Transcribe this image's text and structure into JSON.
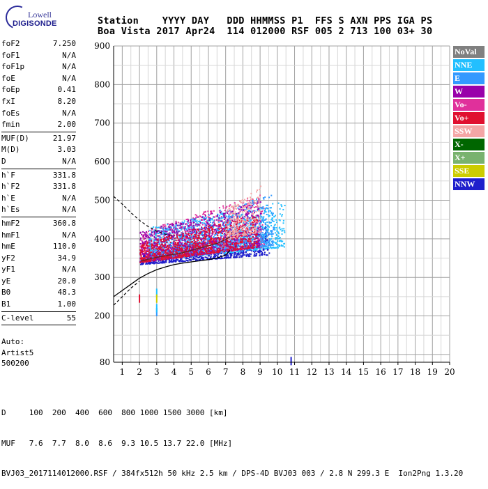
{
  "logo": {
    "line1": "Lowell",
    "line2": "DIGISONDE"
  },
  "header": {
    "line1": "Station    YYYY DAY   DDD HHMMSS P1  FFS S AXN PPS IGA PS",
    "line2": "Boa Vista 2017 Apr24  114 012000 RSF 005 2 713 100 03+ 30"
  },
  "params": [
    {
      "k": "foF2",
      "v": "7.250"
    },
    {
      "k": "foF1",
      "v": "N/A"
    },
    {
      "k": "foF1p",
      "v": "N/A"
    },
    {
      "k": "foE",
      "v": "N/A"
    },
    {
      "k": "foEp",
      "v": "0.41"
    },
    {
      "k": "fxI",
      "v": "8.20"
    },
    {
      "k": "foEs",
      "v": "N/A"
    },
    {
      "k": "fmin",
      "v": "2.00",
      "sep": true
    },
    {
      "k": "MUF(D)",
      "v": "21.97"
    },
    {
      "k": "M(D)",
      "v": "3.03"
    },
    {
      "k": "D",
      "v": "N/A",
      "sep": true
    },
    {
      "k": "h`F",
      "v": "331.8"
    },
    {
      "k": "h`F2",
      "v": "331.8"
    },
    {
      "k": "h`E",
      "v": "N/A"
    },
    {
      "k": "h`Es",
      "v": "N/A",
      "sep": true
    },
    {
      "k": "hmF2",
      "v": "360.8"
    },
    {
      "k": "hmF1",
      "v": "N/A"
    },
    {
      "k": "hmE",
      "v": "110.0"
    },
    {
      "k": "yF2",
      "v": "34.9"
    },
    {
      "k": "yF1",
      "v": "N/A"
    },
    {
      "k": "yE",
      "v": "20.0"
    },
    {
      "k": "B0",
      "v": "48.3"
    },
    {
      "k": "B1",
      "v": "1.00",
      "sep": true
    },
    {
      "k": "C-level",
      "v": "55",
      "sep": true
    }
  ],
  "autoscaling": [
    "Auto:",
    "Artist5",
    "500200"
  ],
  "bottom": {
    "line1": "D     100  200  400  600  800 1000 1500 3000 [km]",
    "line2": "MUF   7.6  7.7  8.0  8.6  9.3 10.5 13.7 22.0 [MHz]",
    "line3": "BVJ03_2017114012000.RSF / 384fx512h 50 kHz 2.5 km / DPS-4D BVJ03 003 / 2.8 N 299.3 E  Ion2Png 1.3.20"
  },
  "legend": [
    {
      "label": "NoVal",
      "color": "#808080"
    },
    {
      "label": "NNE",
      "color": "#22bfff"
    },
    {
      "label": "E",
      "color": "#3399ff"
    },
    {
      "label": "W",
      "color": "#9900aa"
    },
    {
      "label": "Vo-",
      "color": "#e0309b"
    },
    {
      "label": "Vo+",
      "color": "#e01030"
    },
    {
      "label": "SSW",
      "color": "#f4a6a6"
    },
    {
      "label": "X-",
      "color": "#006600"
    },
    {
      "label": "X+",
      "color": "#79b26e"
    },
    {
      "label": "SSE",
      "color": "#cccc00"
    },
    {
      "label": "NNW",
      "color": "#1f1fcc"
    }
  ],
  "chart_data": {
    "type": "scatter",
    "title": "",
    "xlabel": "",
    "ylabel": "",
    "xlim": [
      0.5,
      20
    ],
    "ylim": [
      80,
      900
    ],
    "xticks": [
      1,
      2,
      3,
      4,
      5,
      6,
      7,
      8,
      9,
      10,
      11,
      12,
      13,
      14,
      15,
      16,
      17,
      18,
      19,
      20
    ],
    "yticks": [
      200,
      300,
      400,
      500,
      600,
      700,
      800,
      900
    ],
    "ytick_labels": [
      "200",
      "300",
      "400",
      "500",
      "600",
      "700",
      "800",
      "900"
    ],
    "ymin_label": "80",
    "grid": true,
    "true_height_profile": [
      {
        "x": 0.5,
        "y": 250
      },
      {
        "x": 1.0,
        "y": 266
      },
      {
        "x": 1.5,
        "y": 282
      },
      {
        "x": 2.0,
        "y": 298
      },
      {
        "x": 2.5,
        "y": 310
      },
      {
        "x": 3.0,
        "y": 320
      },
      {
        "x": 3.5,
        "y": 327
      },
      {
        "x": 4.0,
        "y": 333
      },
      {
        "x": 4.5,
        "y": 337
      },
      {
        "x": 5.0,
        "y": 340
      },
      {
        "x": 5.5,
        "y": 343
      },
      {
        "x": 6.0,
        "y": 346
      },
      {
        "x": 6.5,
        "y": 350
      },
      {
        "x": 7.0,
        "y": 358
      },
      {
        "x": 7.25,
        "y": 370
      }
    ],
    "virtual_trace": [
      {
        "x": 2.1,
        "y": 342
      },
      {
        "x": 2.6,
        "y": 348
      },
      {
        "x": 3.0,
        "y": 352
      },
      {
        "x": 3.5,
        "y": 356
      },
      {
        "x": 4.0,
        "y": 360
      },
      {
        "x": 4.5,
        "y": 364
      },
      {
        "x": 5.0,
        "y": 370
      },
      {
        "x": 5.5,
        "y": 376
      },
      {
        "x": 6.0,
        "y": 382
      },
      {
        "x": 6.5,
        "y": 388
      },
      {
        "x": 7.0,
        "y": 398
      },
      {
        "x": 7.25,
        "y": 405
      }
    ],
    "upper_profile_dashed": [
      {
        "x": 0.5,
        "y": 510
      },
      {
        "x": 1.0,
        "y": 490
      },
      {
        "x": 1.5,
        "y": 468
      },
      {
        "x": 2.0,
        "y": 448
      },
      {
        "x": 2.5,
        "y": 432
      },
      {
        "x": 3.0,
        "y": 420
      },
      {
        "x": 3.5,
        "y": 412
      },
      {
        "x": 4.0,
        "y": 408
      }
    ],
    "lower_profile_dashed": [
      {
        "x": 0.5,
        "y": 228
      },
      {
        "x": 1.0,
        "y": 250
      },
      {
        "x": 1.5,
        "y": 272
      },
      {
        "x": 2.0,
        "y": 290
      }
    ],
    "scatter_bands": [
      {
        "name": "NNW",
        "x0": 2.0,
        "x1": 9.5,
        "y_lo_start": 335,
        "y_lo_end": 360,
        "y_hi_start": 360,
        "y_hi_end": 440
      },
      {
        "name": "Vo-",
        "x0": 2.0,
        "x1": 9.2,
        "y_lo_start": 340,
        "y_lo_end": 380,
        "y_hi_start": 420,
        "y_hi_end": 520
      },
      {
        "name": "NNE",
        "x0": 2.5,
        "x1": 10.4,
        "y_lo_start": 345,
        "y_lo_end": 380,
        "y_hi_start": 430,
        "y_hi_end": 500
      },
      {
        "name": "E",
        "x0": 2.5,
        "x1": 9.8,
        "y_lo_start": 345,
        "y_lo_end": 385,
        "y_hi_start": 420,
        "y_hi_end": 520
      },
      {
        "name": "W",
        "x0": 2.0,
        "x1": 9.0,
        "y_lo_start": 340,
        "y_lo_end": 380,
        "y_hi_start": 420,
        "y_hi_end": 500
      },
      {
        "name": "Vo+",
        "x0": 2.0,
        "x1": 8.8,
        "y_lo_start": 340,
        "y_lo_end": 380,
        "y_hi_start": 390,
        "y_hi_end": 470
      },
      {
        "name": "SSW",
        "x0": 7.0,
        "x1": 9.0,
        "y_lo_start": 400,
        "y_lo_end": 420,
        "y_hi_start": 480,
        "y_hi_end": 540
      }
    ],
    "outliers": [
      {
        "name": "E",
        "x": 3.0,
        "y": 210
      },
      {
        "name": "NNE",
        "x": 3.0,
        "y": 220
      },
      {
        "name": "NNE",
        "x": 3.0,
        "y": 260
      },
      {
        "name": "SSE",
        "x": 3.0,
        "y": 245
      },
      {
        "name": "Vo+",
        "x": 2.0,
        "y": 245
      },
      {
        "name": "NNW",
        "x": 10.8,
        "y": 83
      }
    ]
  }
}
